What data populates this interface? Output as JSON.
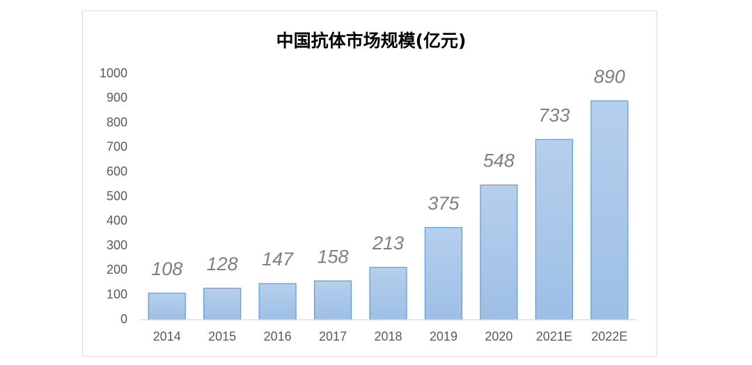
{
  "chart_data": {
    "type": "bar",
    "title": "中国抗体市场规模(亿元)",
    "categories": [
      "2014",
      "2015",
      "2016",
      "2017",
      "2018",
      "2019",
      "2020",
      "2021E",
      "2022E"
    ],
    "values": [
      108,
      128,
      147,
      158,
      213,
      375,
      548,
      733,
      890
    ],
    "color": "#9dbfe6",
    "ylim": [
      0,
      1000
    ],
    "yticks": [
      0,
      100,
      200,
      300,
      400,
      500,
      600,
      700,
      800,
      900,
      1000
    ],
    "grid": false
  }
}
